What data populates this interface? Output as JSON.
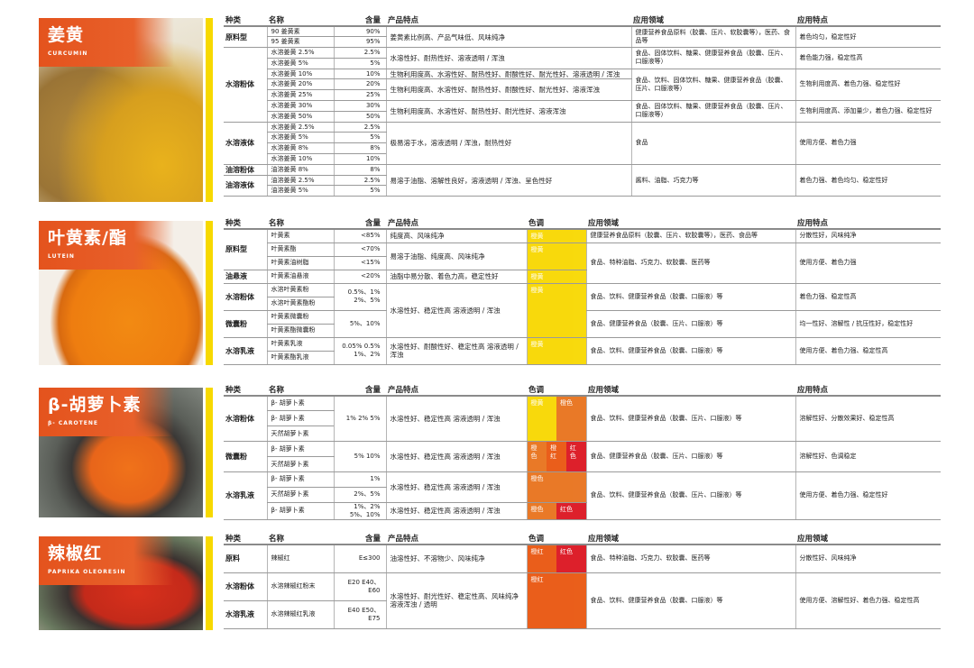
{
  "palette": {
    "yellow": "#f8d800",
    "orange": "#e8721c",
    "orangered": "#e9560f",
    "red": "#dc1520"
  },
  "sections": [
    {
      "id": "s1",
      "title": "姜黄",
      "subtitle": "CURCUMIN",
      "photo": "turmeric-roots-and-powder",
      "headers": [
        "种类",
        "名称",
        "含量",
        "产品特点",
        "应用领域",
        "应用特点"
      ],
      "rows": [
        [
          {
            "t": "原料型",
            "rs": 2
          },
          {
            "t": "90 姜黄素"
          },
          {
            "t": "90%"
          },
          {
            "t": "姜黄素比例高、产品气味低、风味纯净",
            "rs": 2
          },
          {
            "t": "健康营养食品原料（胶囊、压片、软胶囊等），医药、食品等",
            "rs": 2
          },
          {
            "t": "着色均匀，稳定性好",
            "rs": 2
          }
        ],
        [
          {
            "t": "95 姜黄素"
          },
          {
            "t": "95%"
          }
        ],
        [
          {
            "t": "水溶粉体",
            "rs": 7
          },
          {
            "t": "水溶姜黄 2.5%"
          },
          {
            "t": "2.5%"
          },
          {
            "t": "水溶性好、耐热性好、溶液透明 / 浑浊",
            "rs": 2
          },
          {
            "t": "食品、固体饮料、糖果、健康营养食品（胶囊、压片、口服液等）",
            "rs": 2
          },
          {
            "t": "着色能力强，稳定性高",
            "rs": 2
          }
        ],
        [
          {
            "t": "水溶姜黄 5%"
          },
          {
            "t": "5%"
          }
        ],
        [
          {
            "t": "水溶姜黄 10%"
          },
          {
            "t": "10%"
          },
          {
            "t": "生物利用度高、水溶性好、耐热性好、耐酸性好、耐光性好、溶液透明 / 浑浊"
          },
          {
            "t": "食品、饮料、固体饮料、糖果、健康营养食品（胶囊、压片、口服液等）",
            "rs": 3
          },
          {
            "t": "生物利用度高、着色力强、稳定性好",
            "rs": 3
          }
        ],
        [
          {
            "t": "水溶姜黄 20%"
          },
          {
            "t": "20%"
          },
          {
            "t": "生物利用度高、水溶性好、耐热性好、耐酸性好、耐光性好、溶液浑浊",
            "rs": 2
          }
        ],
        [
          {
            "t": "水溶姜黄 25%"
          },
          {
            "t": "25%"
          }
        ],
        [
          {
            "t": "水溶姜黄 30%"
          },
          {
            "t": "30%"
          },
          {
            "t": "生物利用度高、水溶性好、耐热性好、耐光性好、溶液浑浊",
            "rs": 2
          },
          {
            "t": "食品、固体饮料、糖果、健康营养食品（胶囊、压片、口服液等）",
            "rs": 2
          },
          {
            "t": "生物利用度高、添加量少，着色力强、稳定性好",
            "rs": 2
          }
        ],
        [
          {
            "t": "水溶姜黄 50%"
          },
          {
            "t": "50%"
          }
        ],
        [
          {
            "t": "水溶液体",
            "rs": 4
          },
          {
            "t": "水溶姜黄 2.5%"
          },
          {
            "t": "2.5%"
          },
          {
            "t": "极易溶于水，溶液透明 / 浑浊，耐热性好",
            "rs": 4
          },
          {
            "t": "食品",
            "rs": 4
          },
          {
            "t": "使用方便、着色力强",
            "rs": 4
          }
        ],
        [
          {
            "t": "水溶姜黄 5%"
          },
          {
            "t": "5%"
          }
        ],
        [
          {
            "t": "水溶姜黄 8%"
          },
          {
            "t": "8%"
          }
        ],
        [
          {
            "t": "水溶姜黄 10%"
          },
          {
            "t": "10%"
          }
        ],
        [
          {
            "t": "油溶粉体"
          },
          {
            "t": "油溶姜黄 8%"
          },
          {
            "t": "8%"
          },
          {
            "t": "易溶于油脂、溶解性良好，溶液透明 / 浑浊、呈色性好",
            "rs": 3
          },
          {
            "t": "酱料、油脂、巧克力等",
            "rs": 3
          },
          {
            "t": "着色力强、着色均匀、稳定性好",
            "rs": 3
          }
        ],
        [
          {
            "t": "油溶液体",
            "rs": 2
          },
          {
            "t": "油溶姜黄 2.5%"
          },
          {
            "t": "2.5%"
          }
        ],
        [
          {
            "t": "油溶姜黄 5%"
          },
          {
            "t": "5%"
          }
        ]
      ]
    },
    {
      "id": "s2",
      "title": "叶黄素/酯",
      "subtitle": "LUTEIN",
      "photo": "orange-lutein-dish",
      "headers": [
        "种类",
        "名称",
        "含量",
        "产品特点",
        "色调",
        "应用领域",
        "应用特点"
      ],
      "rows": [
        [
          {
            "t": "原料型",
            "rs": 3
          },
          {
            "t": "叶黄素"
          },
          {
            "t": "<85%"
          },
          {
            "t": "纯度高、风味纯净"
          },
          {
            "sw": [
              {
                "t": "橙黄",
                "c": "yellow"
              }
            ]
          },
          {
            "t": "健康营养食品原料（胶囊、压片、软胶囊等），医药、食品等"
          },
          {
            "t": "分散性好，风味纯净"
          }
        ],
        [
          {
            "t": "叶黄素酯"
          },
          {
            "t": "<70%"
          },
          {
            "t": "易溶于油脂、纯度高、风味纯净",
            "rs": 2
          },
          {
            "sw": [
              {
                "t": "橙黄",
                "c": "yellow"
              }
            ],
            "rs": 2
          },
          {
            "t": "食品、特种油脂、巧克力、软胶囊、医药等",
            "rs": 3
          },
          {
            "t": "使用方便、着色力强",
            "rs": 3
          }
        ],
        [
          {
            "t": "叶黄素油树脂"
          },
          {
            "t": "<15%"
          }
        ],
        [
          {
            "t": "油悬液"
          },
          {
            "t": "叶黄素油悬液"
          },
          {
            "t": "<20%"
          },
          {
            "t": "油脂中易分散、着色力高，稳定性好"
          },
          {
            "sw": [
              {
                "t": "橙黄",
                "c": "yellow"
              }
            ]
          }
        ],
        [
          {
            "t": "水溶粉体",
            "rs": 2
          },
          {
            "t": "水溶叶黄素粉"
          },
          {
            "t": "0.5%、1% 2%、5%",
            "rs": 2
          },
          {
            "t": "水溶性好、稳定性高 溶液透明 / 浑浊",
            "rs": 4
          },
          {
            "sw": [
              {
                "t": "橙黄",
                "c": "yellow"
              }
            ],
            "rs": 4
          },
          {
            "t": "食品、饮料、健康营养食品（胶囊、口服液）等",
            "rs": 2
          },
          {
            "t": "着色力强、稳定性高",
            "rs": 2
          }
        ],
        [
          {
            "t": "水溶叶黄素酯粉"
          }
        ],
        [
          {
            "t": "微囊粉",
            "rs": 2
          },
          {
            "t": "叶黄素微囊粉"
          },
          {
            "t": "5%、10%",
            "rs": 2
          },
          {
            "t": "食品、健康营养食品（胶囊、压片、口服液）等",
            "rs": 2
          },
          {
            "t": "均一性好、溶解性 / 抗压性好，稳定性好",
            "rs": 2
          }
        ],
        [
          {
            "t": "叶黄素酯微囊粉"
          }
        ],
        [
          {
            "t": "水溶乳液",
            "rs": 2
          },
          {
            "t": "叶黄素乳液"
          },
          {
            "t": "0.05% 0.5% 1%、2%",
            "rs": 2
          },
          {
            "t": "水溶性好、耐酸性好、稳定性高 溶液透明 / 浑浊",
            "rs": 2
          },
          {
            "sw": [
              {
                "t": "橙黄",
                "c": "yellow"
              }
            ],
            "rs": 2
          },
          {
            "t": "食品、饮料、健康营养食品（胶囊、口服液）等",
            "rs": 2
          },
          {
            "t": "使用方便、着色力强、稳定性高",
            "rs": 2
          }
        ],
        [
          {
            "t": "叶黄素酯乳液"
          }
        ]
      ]
    },
    {
      "id": "s3",
      "title": "β-胡萝卜素",
      "subtitle": "β- CAROTENE",
      "photo": "orange-powder-bowl",
      "headers": [
        "种类",
        "名称",
        "含量",
        "产品特点",
        "色调",
        "应用领域",
        "应用特点"
      ],
      "rows": [
        [
          {
            "t": "水溶粉体",
            "rs": 3
          },
          {
            "t": "β- 胡萝卜素"
          },
          {
            "t": "1% 2% 5%",
            "rs": 3
          },
          {
            "t": "水溶性好、稳定性高 溶液透明 / 浑浊",
            "rs": 3
          },
          {
            "sw": [
              {
                "t": "橙黄",
                "c": "yellow"
              },
              {
                "t": "橙色",
                "c": "orange"
              }
            ],
            "rs": 3
          },
          {
            "t": "食品、饮料、健康营养食品（胶囊、压片、口服液）等",
            "rs": 3
          },
          {
            "t": "溶解性好、分散效果好、稳定性高",
            "rs": 3
          }
        ],
        [
          {
            "t": "β- 胡萝卜素"
          }
        ],
        [
          {
            "t": "天然胡萝卜素"
          }
        ],
        [
          {
            "t": "微囊粉",
            "rs": 2
          },
          {
            "t": "β- 胡萝卜素"
          },
          {
            "t": "5% 10%",
            "rs": 2
          },
          {
            "t": "水溶性好、稳定性高 溶液透明 / 浑浊",
            "rs": 2
          },
          {
            "sw": [
              {
                "t": "橙色",
                "c": "orange"
              },
              {
                "t": "橙红",
                "c": "orangered"
              },
              {
                "t": "红色",
                "c": "red"
              }
            ],
            "rs": 2
          },
          {
            "t": "食品、健康营养食品（胶囊、压片、口服液）等",
            "rs": 2
          },
          {
            "t": "溶解性好、色调稳定",
            "rs": 2
          }
        ],
        [
          {
            "t": "天然胡萝卜素"
          }
        ],
        [
          {
            "t": "水溶乳液",
            "rs": 3
          },
          {
            "t": "β- 胡萝卜素"
          },
          {
            "t": "1%"
          },
          {
            "t": "水溶性好、稳定性高 溶液透明 / 浑浊",
            "rs": 2
          },
          {
            "sw": [
              {
                "t": "橙色",
                "c": "orange"
              }
            ],
            "rs": 2
          },
          {
            "t": "食品、饮料、健康营养食品（胶囊、压片、口服液）等",
            "rs": 3
          },
          {
            "t": "使用方便、着色力强、稳定性好",
            "rs": 3
          }
        ],
        [
          {
            "t": "天然胡萝卜素"
          },
          {
            "t": "2%、5%"
          }
        ],
        [
          {
            "t": "β- 胡萝卜素"
          },
          {
            "t": "1%、2% 5%、10%"
          },
          {
            "t": "水溶性好、稳定性高 溶液透明 / 浑浊"
          },
          {
            "sw": [
              {
                "t": "橙色",
                "c": "orange"
              },
              {
                "t": "红色",
                "c": "red"
              }
            ]
          }
        ]
      ]
    },
    {
      "id": "s4",
      "title": "辣椒红",
      "subtitle": "PAPRIKA OLEORESIN",
      "photo": "red-paprika-powder-bowl",
      "headers": [
        "种类",
        "名称",
        "含量",
        "产品特点",
        "色调",
        "应用领域",
        "应用领域"
      ],
      "rows": [
        [
          {
            "t": "原料"
          },
          {
            "t": "辣椒红"
          },
          {
            "t": "E≤300"
          },
          {
            "t": "油溶性好、不溶物少、风味纯净"
          },
          {
            "sw": [
              {
                "t": "橙红",
                "c": "orangered"
              },
              {
                "t": "红色",
                "c": "red"
              }
            ]
          },
          {
            "t": "食品、特种油脂、巧克力、软胶囊、医药等"
          },
          {
            "t": "分散性好、风味纯净"
          }
        ],
        [
          {
            "t": "水溶粉体"
          },
          {
            "t": "水溶辣椒红粉末"
          },
          {
            "t": "E20 E40、E60"
          },
          {
            "t": "水溶性好、耐光性好、稳定性高、风味纯净 溶液浑浊 / 透明",
            "rs": 2
          },
          {
            "sw": [
              {
                "t": "橙红",
                "c": "orangered"
              }
            ],
            "rs": 2
          },
          {
            "t": "食品、饮料、健康营养食品（胶囊、口服液）等",
            "rs": 2
          },
          {
            "t": "使用方便、溶解性好、着色力强、稳定性高",
            "rs": 2
          }
        ],
        [
          {
            "t": "水溶乳液"
          },
          {
            "t": "水溶辣椒红乳液"
          },
          {
            "t": "E40 E50、E75"
          }
        ]
      ]
    }
  ]
}
